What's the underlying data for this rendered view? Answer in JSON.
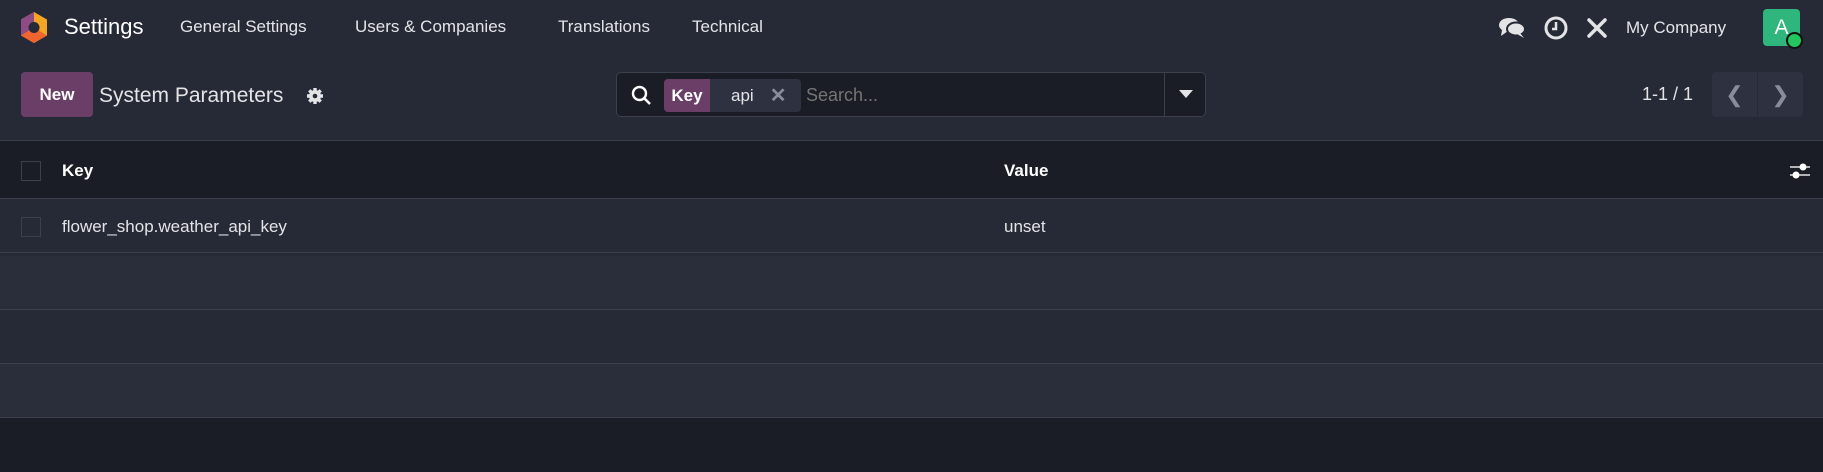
{
  "navbar": {
    "app_name": "Settings",
    "menu": [
      "General Settings",
      "Users & Companies",
      "Translations",
      "Technical"
    ],
    "company": "My Company",
    "avatar_letter": "A",
    "colors": {
      "avatar": "#2eb67d",
      "status": "#22c55e"
    }
  },
  "control_panel": {
    "new_label": "New",
    "title": "System Parameters",
    "search": {
      "facet_label": "Key",
      "facet_value": "api",
      "placeholder": "Search..."
    },
    "pager": "1-1 / 1"
  },
  "table": {
    "columns": [
      "Key",
      "Value"
    ],
    "rows": [
      {
        "key": "flower_shop.weather_api_key",
        "value": "unset"
      }
    ]
  },
  "colors": {
    "primary": "#6b3e67"
  }
}
